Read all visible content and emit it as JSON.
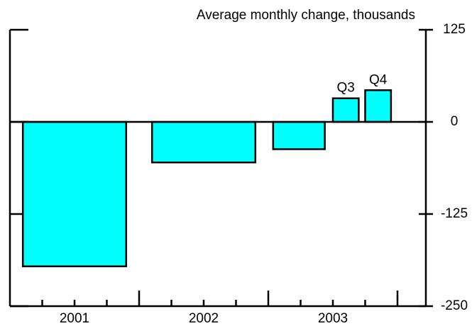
{
  "chart_data": {
    "type": "bar",
    "title": "Average monthly change, thousands",
    "groups": [
      "2001",
      "2002",
      "2003"
    ],
    "categories": [
      null,
      null,
      null,
      "Q3",
      "Q4"
    ],
    "values": [
      -196,
      -55,
      -37,
      32,
      43
    ],
    "color": "#00ffff",
    "ylim": [
      -250,
      125
    ],
    "yticks": [
      125,
      0,
      -125,
      -250
    ],
    "y_axis_side": "right"
  }
}
